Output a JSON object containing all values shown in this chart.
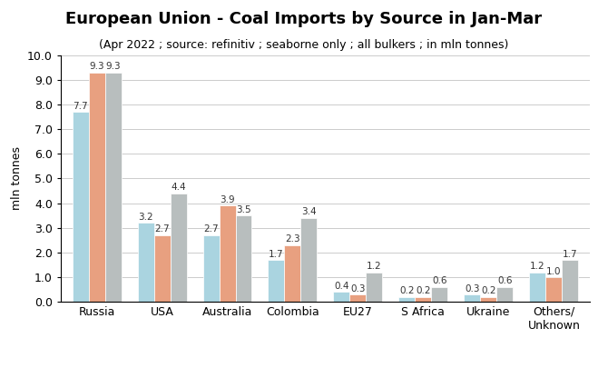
{
  "title": "European Union - Coal Imports by Source in Jan-Mar",
  "subtitle": "(Apr 2022 ; source: refinitiv ; seaborne only ; all bulkers ; in mln tonnes)",
  "ylabel": "mln tonnes",
  "categories": [
    "Russia",
    "USA",
    "Australia",
    "Colombia",
    "EU27",
    "S Africa",
    "Ukraine",
    "Others/\nUnknown"
  ],
  "series": {
    "2020 (1-3)": [
      7.7,
      3.2,
      2.7,
      1.7,
      0.4,
      0.2,
      0.3,
      1.2
    ],
    "2021 (1-3)": [
      9.3,
      2.7,
      3.9,
      2.3,
      0.3,
      0.2,
      0.2,
      1.0
    ],
    "2022 (1-3)": [
      9.3,
      4.4,
      3.5,
      3.4,
      1.2,
      0.6,
      0.6,
      1.7
    ]
  },
  "colors": {
    "2020 (1-3)": "#aad4e0",
    "2021 (1-3)": "#e8a080",
    "2022 (1-3)": "#b8bebe"
  },
  "ylim": [
    0,
    10.0
  ],
  "yticks": [
    0.0,
    1.0,
    2.0,
    3.0,
    4.0,
    5.0,
    6.0,
    7.0,
    8.0,
    9.0,
    10.0
  ],
  "bar_width": 0.25,
  "label_fontsize": 7.5,
  "title_fontsize": 13,
  "subtitle_fontsize": 9,
  "ylabel_fontsize": 9,
  "tick_fontsize": 9,
  "legend_fontsize": 9,
  "background_color": "#ffffff"
}
